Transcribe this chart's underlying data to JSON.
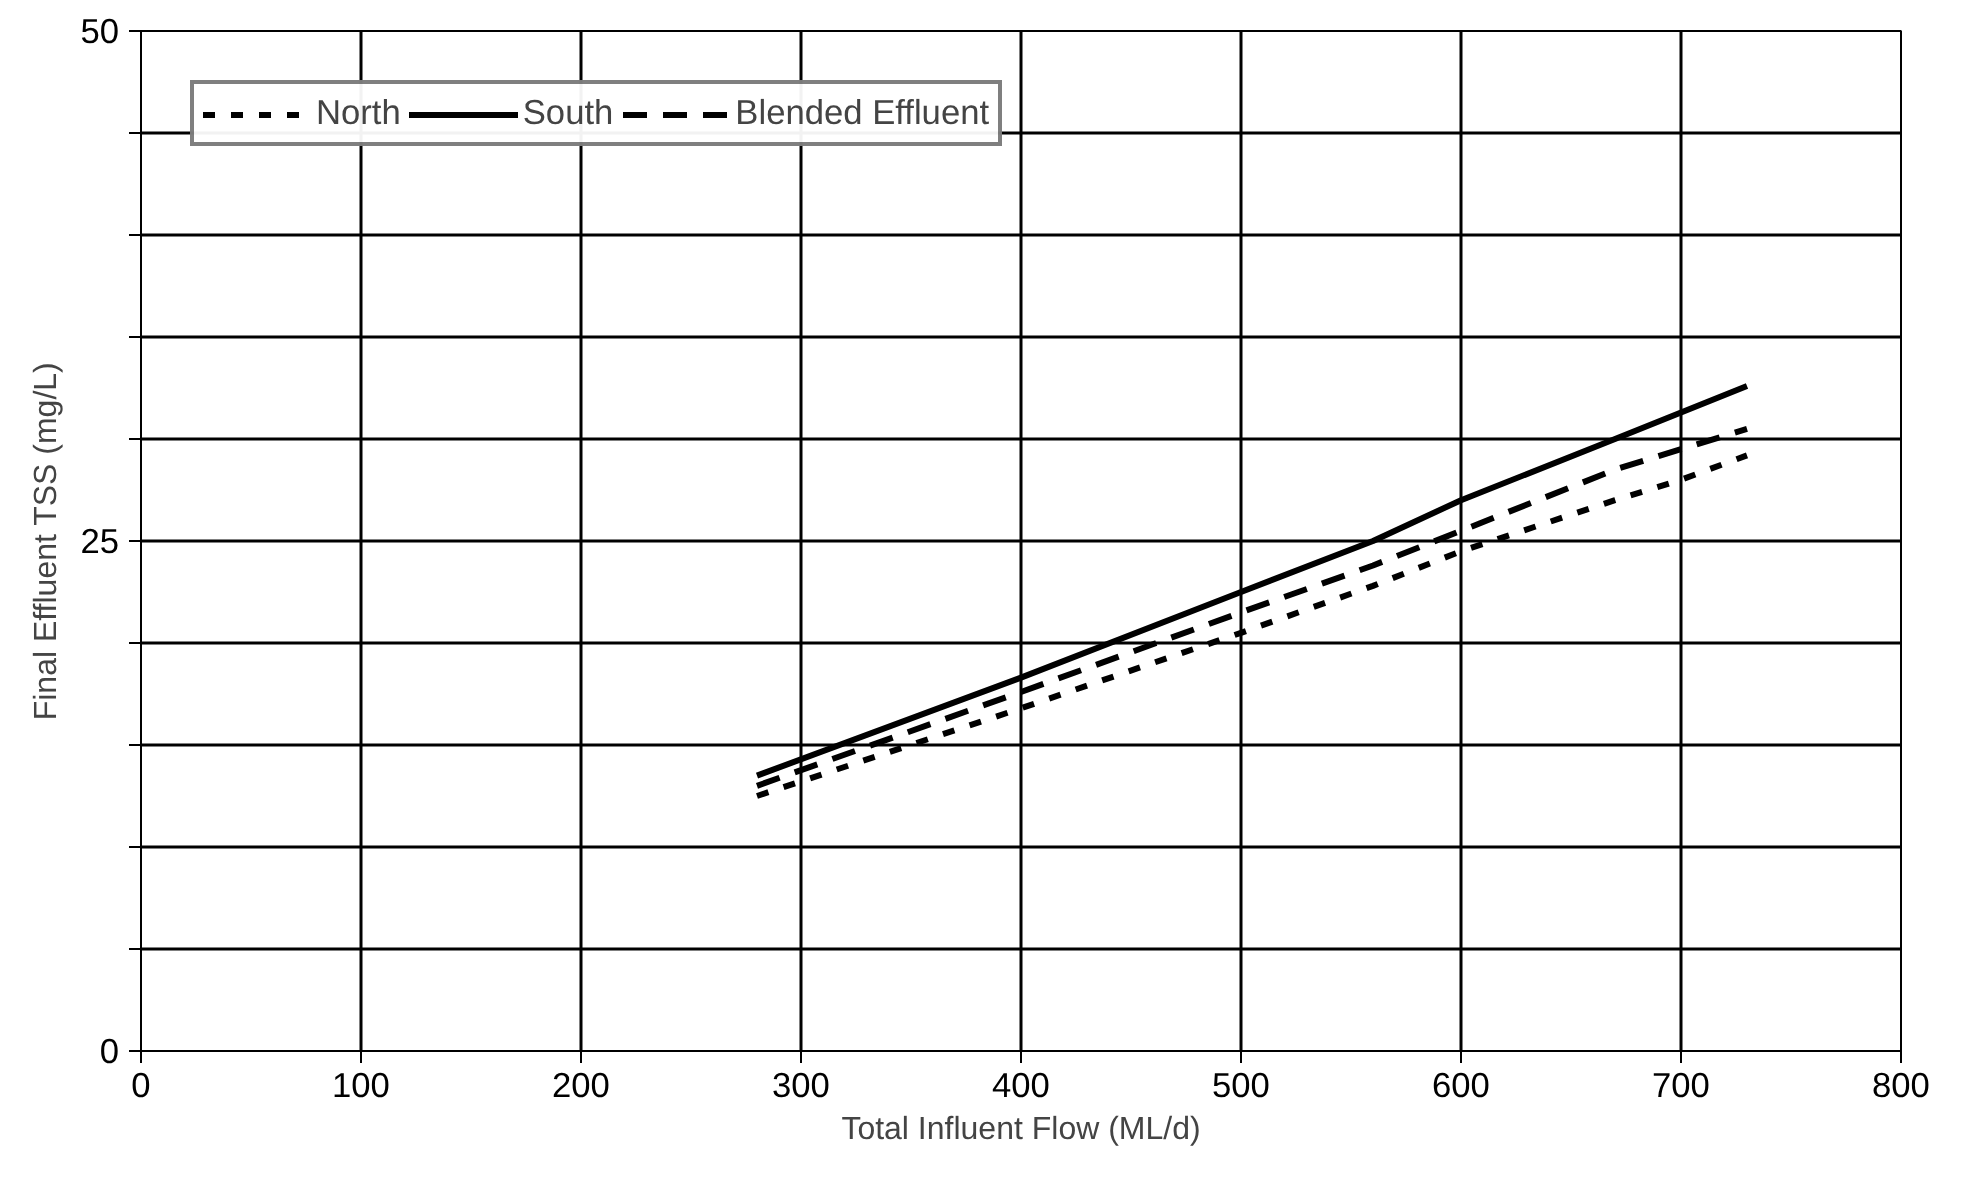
{
  "chart_data": {
    "type": "line",
    "xlabel": "Total Influent Flow (ML/d)",
    "ylabel": "Final Effluent TSS (mg/L)",
    "xlim": [
      0,
      800
    ],
    "ylim": [
      0,
      50
    ],
    "xticks": [
      0,
      100,
      200,
      300,
      400,
      500,
      600,
      700,
      800
    ],
    "yticks": [
      0,
      {
        "value": 5,
        "label": null
      },
      {
        "value": 10,
        "label": null
      },
      {
        "value": 15,
        "label": null
      },
      {
        "value": 20,
        "label": null
      },
      25,
      {
        "value": 30,
        "label": null
      },
      {
        "value": 35,
        "label": null
      },
      {
        "value": 40,
        "label": null
      },
      {
        "value": 45,
        "label": null
      },
      50
    ],
    "grid": true,
    "legend": "top left",
    "x": [
      280,
      400,
      500,
      560,
      600,
      670,
      700,
      730
    ],
    "series": [
      {
        "name": "North",
        "color": "#000000",
        "line_style": "dotted",
        "values": [
          12.5,
          16.8,
          20.5,
          22.8,
          24.5,
          27.0,
          28.0,
          29.2
        ]
      },
      {
        "name": "South",
        "color": "#000000",
        "line_style": "solid",
        "values": [
          13.5,
          18.3,
          22.5,
          25.0,
          27.0,
          30.0,
          31.3,
          32.6
        ]
      },
      {
        "name": "Blended Effluent",
        "color": "#000000",
        "line_style": "dashed",
        "values": [
          13.0,
          17.6,
          21.5,
          23.8,
          25.5,
          28.5,
          29.5,
          30.5
        ]
      }
    ]
  }
}
